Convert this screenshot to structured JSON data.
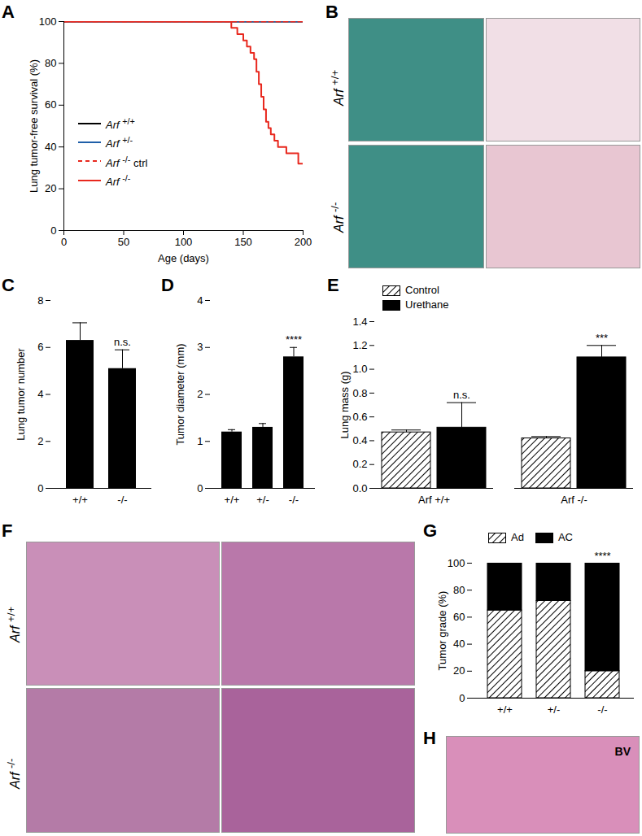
{
  "chart_data": [
    {
      "panel": "A",
      "type": "line",
      "xlabel": "Age (days)",
      "ylabel": "Lung tumor-free survival (%)",
      "xlim": [
        0,
        200
      ],
      "xticks": [
        0,
        50,
        100,
        150,
        200
      ],
      "ylim": [
        0,
        100
      ],
      "yticks": [
        0,
        20,
        40,
        60,
        80,
        100
      ],
      "series": [
        {
          "name": "Arf +/+",
          "color": "#000000",
          "line_style": "solid",
          "x": [
            0,
            200
          ],
          "values": [
            100,
            100
          ]
        },
        {
          "name": "Arf +/-",
          "color": "#1f5fa8",
          "line_style": "solid",
          "x": [
            0,
            200
          ],
          "values": [
            100,
            100
          ]
        },
        {
          "name": "Arf -/- ctrl",
          "color": "#e8281e",
          "line_style": "dashed",
          "x": [
            0,
            200
          ],
          "values": [
            100,
            100
          ]
        },
        {
          "name": "Arf -/-",
          "color": "#e8281e",
          "line_style": "solid",
          "x": [
            0,
            140,
            145,
            150,
            153,
            156,
            159,
            161,
            163,
            165,
            167,
            169,
            171,
            173,
            176,
            179,
            182,
            186,
            190,
            196,
            200
          ],
          "values": [
            100,
            97,
            94,
            91,
            88,
            85,
            82,
            76,
            70,
            64,
            58,
            52,
            49,
            46,
            43,
            40,
            40,
            37,
            37,
            32,
            32
          ]
        }
      ]
    },
    {
      "panel": "C",
      "type": "bar",
      "ylabel": "Lung tumor number",
      "categories": [
        "+/+",
        "-/-"
      ],
      "values": [
        6.3,
        5.1
      ],
      "errors": [
        0.75,
        0.8
      ],
      "color": "#000000",
      "ylim": [
        0,
        8
      ],
      "yticks": [
        0,
        2,
        4,
        6,
        8
      ],
      "annotations": [
        {
          "category": "-/-",
          "text": "n.s."
        }
      ]
    },
    {
      "panel": "D",
      "type": "bar",
      "ylabel": "Tumor diameter (mm)",
      "categories": [
        "+/+",
        "+/-",
        "-/-"
      ],
      "values": [
        1.2,
        1.3,
        2.8
      ],
      "errors": [
        0.05,
        0.08,
        0.2
      ],
      "color": "#000000",
      "ylim": [
        0,
        4
      ],
      "yticks": [
        0,
        1,
        2,
        3,
        4
      ],
      "annotations": [
        {
          "category": "-/-",
          "text": "****"
        }
      ]
    },
    {
      "panel": "E",
      "type": "bar",
      "ylabel": "Lung mass (g)",
      "categories": [
        "Arf +/+",
        "Arf -/-"
      ],
      "series": [
        {
          "name": "Control",
          "color": "#000000",
          "marker": "hatch",
          "values": [
            0.47,
            0.42
          ],
          "errors": [
            0.02,
            0.015
          ]
        },
        {
          "name": "Urethane",
          "color": "#000000",
          "marker": "solid",
          "values": [
            0.51,
            1.1
          ],
          "errors": [
            0.21,
            0.1
          ]
        }
      ],
      "ylim": [
        0,
        1.4
      ],
      "yticks": [
        {
          "value": 0,
          "label": "0.0"
        },
        {
          "value": 0.2,
          "label": "0.2"
        },
        {
          "value": 0.4,
          "label": "0.4"
        },
        {
          "value": 0.6,
          "label": "0.6"
        },
        {
          "value": 0.8,
          "label": "0.8"
        },
        {
          "value": 1,
          "label": "1.0"
        },
        {
          "value": 1.2,
          "label": "1.2"
        },
        {
          "value": 1.4,
          "label": "1.4"
        }
      ],
      "legend": "top-left",
      "annotations": [
        {
          "category": "Arf +/+",
          "series": "Urethane",
          "text": "n.s."
        },
        {
          "category": "Arf -/-",
          "series": "Urethane",
          "text": "***"
        }
      ]
    },
    {
      "panel": "G",
      "type": "bar",
      "stacked": true,
      "ylabel": "Tumor grade (%)",
      "categories": [
        "+/+",
        "+/-",
        "-/-"
      ],
      "series": [
        {
          "name": "Ad",
          "color": "#000000",
          "marker": "hatch",
          "values": [
            65,
            72,
            20
          ]
        },
        {
          "name": "AC",
          "color": "#000000",
          "marker": "solid",
          "values": [
            35,
            28,
            80
          ]
        }
      ],
      "ylim": [
        0,
        100
      ],
      "yticks": [
        0,
        20,
        40,
        60,
        80,
        100
      ],
      "legend": "top",
      "annotations": [
        {
          "category": "-/-",
          "text": "****"
        }
      ]
    }
  ],
  "images": [
    {
      "panel": "B",
      "row_labels": [
        "Arf +/+",
        "Arf -/-"
      ]
    },
    {
      "panel": "F",
      "row_labels": [
        "Arf +/+",
        "Arf -/-"
      ]
    },
    {
      "panel": "H",
      "labels": [
        "BV"
      ]
    }
  ]
}
